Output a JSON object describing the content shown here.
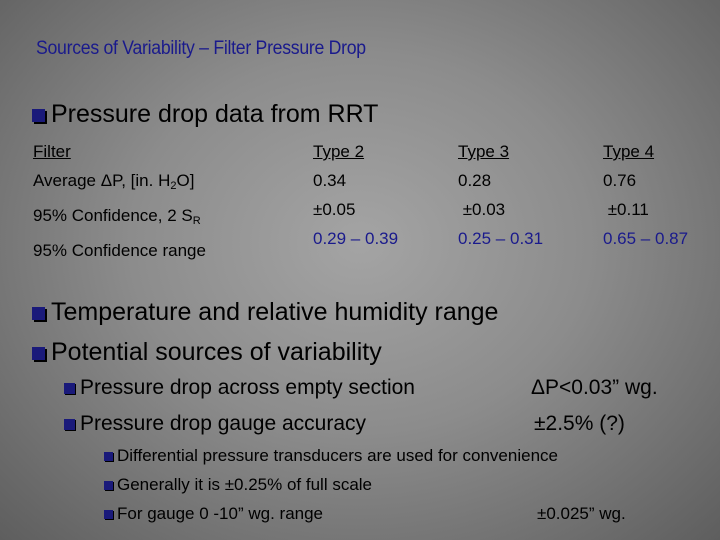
{
  "title": "Sources of Variability – Filter Pressure Drop",
  "bullet1": "Pressure drop data from RRT",
  "table": {
    "row_labels": {
      "filter": "Filter",
      "avg_prefix": "Average ΔP, [in. H",
      "avg_sub": "2",
      "avg_suffix": "O]",
      "conf_prefix": "95% Confidence, 2 S",
      "conf_sub": "R",
      "range": "95% Confidence range"
    },
    "columns": [
      {
        "type": "Type 2",
        "avg": "0.34",
        "conf": "±0.05",
        "range": "0.29 – 0.39"
      },
      {
        "type": "Type 3",
        "avg": "0.28",
        "conf": " ±0.03",
        "range": "0.25 – 0.31"
      },
      {
        "type": "Type 4",
        "avg": "0.76",
        "conf": " ±0.11",
        "range": "0.65 – 0.87"
      }
    ]
  },
  "bullet2": "Temperature and relative humidity range",
  "bullet3": "Potential sources of variability",
  "sub1": {
    "label": "Pressure drop across empty section",
    "value": "ΔP<0.03” wg."
  },
  "sub2": {
    "label": "Pressure drop gauge accuracy",
    "value": "±2.5% (?)"
  },
  "subsub1": "Differential pressure transducers are used for convenience",
  "subsub2": "Generally it is ±0.25% of full scale",
  "subsub3": {
    "label": "For gauge 0 -10” wg. range",
    "value": "±0.025” wg."
  }
}
